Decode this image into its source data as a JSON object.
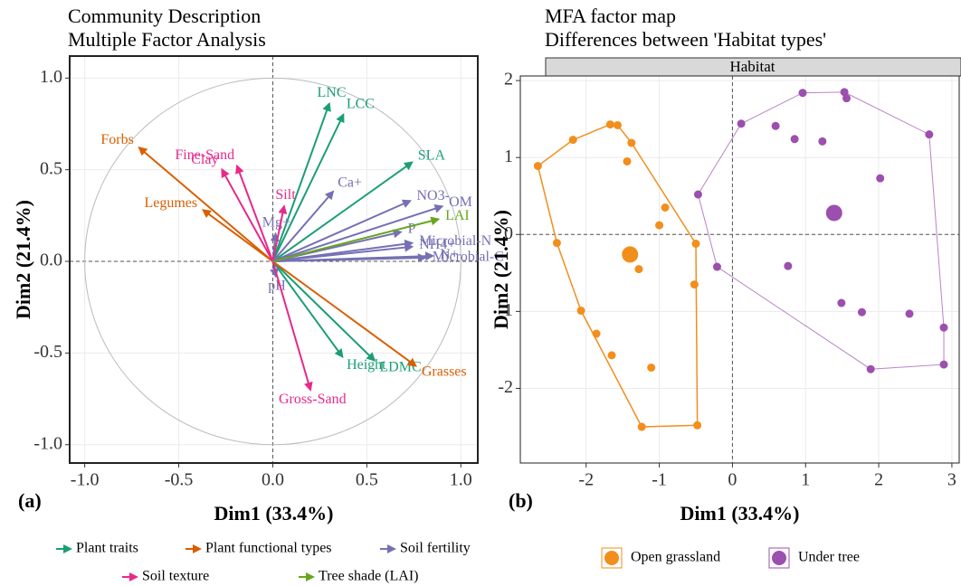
{
  "chart_data": [
    {
      "type": "vector",
      "title": [
        "Community Description",
        "Multiple Factor Analysis"
      ],
      "panel_label": "(a)",
      "xlabel": "Dim1 (33.4%)",
      "ylabel": "Dim2 (21.4%)",
      "xlim": [
        -1.08,
        1.09
      ],
      "ylim": [
        -1.1,
        1.12
      ],
      "xticks": [
        {
          "value": -1,
          "label": "-1.0"
        },
        -0.5,
        {
          "value": 0,
          "label": "0.0"
        },
        0.5,
        {
          "value": 1,
          "label": "1.0"
        }
      ],
      "yticks": [
        {
          "value": -1,
          "label": "-1.0"
        },
        -0.5,
        {
          "value": 0,
          "label": "0.0"
        },
        0.5,
        {
          "value": 1,
          "label": "1.0"
        }
      ],
      "grid": true,
      "legend": "bottom",
      "series": [
        {
          "name": "Plant traits",
          "color": "#1b9e77",
          "labels": [
            "LNC",
            "LCC",
            "SLA",
            "Height",
            "LDMC"
          ],
          "x": [
            0.3,
            0.375,
            0.74,
            0.37,
            0.54
          ],
          "y": [
            0.86,
            0.8,
            0.54,
            -0.52,
            -0.54
          ]
        },
        {
          "name": "Plant functional types",
          "color": "#d95f02",
          "labels": [
            "Forbs",
            "Legumes",
            "Grasses"
          ],
          "x": [
            -0.71,
            -0.37,
            0.76
          ],
          "y": [
            0.62,
            0.28,
            -0.57
          ]
        },
        {
          "name": "Soil fertility",
          "color": "#7570b3",
          "labels": [
            "Ca+",
            "NO3-",
            "OM",
            "P",
            "Microbial-N",
            "NH4+",
            "N+",
            "Microbial-C",
            "Mg+",
            "pH"
          ],
          "x": [
            0.32,
            0.73,
            0.9,
            0.68,
            0.74,
            0.74,
            0.85,
            0.81,
            0.015,
            0.015
          ],
          "y": [
            0.38,
            0.33,
            0.3,
            0.16,
            0.1,
            0.08,
            0.03,
            0.02,
            0.15,
            -0.08
          ]
        },
        {
          "name": "Soil texture",
          "color": "#e7298a",
          "labels": [
            "Silt",
            "Clay",
            "Fine-Sand",
            "Gross-Sand"
          ],
          "x": [
            0.06,
            -0.27,
            -0.19,
            0.2
          ],
          "y": [
            0.3,
            0.5,
            0.52,
            -0.7
          ]
        },
        {
          "name": "Tree shade (LAI)",
          "color": "#66a61e",
          "labels": [
            "LAI"
          ],
          "x": [
            0.88
          ],
          "y": [
            0.23
          ]
        }
      ]
    },
    {
      "type": "scatter",
      "title": [
        "MFA factor map",
        "Differences between 'Habitat types'"
      ],
      "panel_label": "(b)",
      "strip": "Habitat",
      "xlabel": "Dim1 (33.4%)",
      "ylabel": "Dim2 (21.4%)",
      "xlim": [
        -2.9,
        3.1
      ],
      "ylim": [
        -2.97,
        2.06
      ],
      "xticks": [
        -2,
        -1,
        0,
        1,
        2,
        3
      ],
      "yticks": [
        -2,
        -1,
        0,
        1,
        2
      ],
      "grid": true,
      "hull": true,
      "legend": "bottom",
      "series": [
        {
          "name": "Open grassland",
          "color": "#f28e1c",
          "x": [
            -2.66,
            -2.18,
            -1.67,
            -1.57,
            -1.38,
            -1.44,
            -0.92,
            -1.0,
            -0.5,
            -0.52,
            -2.4,
            -2.07,
            -1.86,
            -1.65,
            -1.11,
            -1.24,
            -0.48,
            -1.28
          ],
          "y": [
            0.89,
            1.23,
            1.43,
            1.42,
            1.19,
            0.95,
            0.35,
            0.12,
            -0.12,
            -0.65,
            -0.11,
            -0.99,
            -1.29,
            -1.57,
            -1.73,
            -2.5,
            -2.48,
            -0.45
          ],
          "center": [
            -1.4,
            -0.26
          ]
        },
        {
          "name": "Under tree",
          "color": "#9c4fae",
          "x": [
            0.12,
            0.96,
            1.53,
            1.56,
            0.59,
            0.85,
            1.23,
            2.69,
            2.02,
            -0.47,
            -0.21,
            0.76,
            1.49,
            1.77,
            2.42,
            2.89,
            1.89,
            2.89
          ],
          "y": [
            1.44,
            1.84,
            1.85,
            1.77,
            1.41,
            1.24,
            1.21,
            1.3,
            0.73,
            0.52,
            -0.42,
            -0.41,
            -0.89,
            -1.01,
            -1.03,
            -1.21,
            -1.75,
            -1.69
          ],
          "center": [
            1.39,
            0.28
          ]
        }
      ]
    }
  ]
}
